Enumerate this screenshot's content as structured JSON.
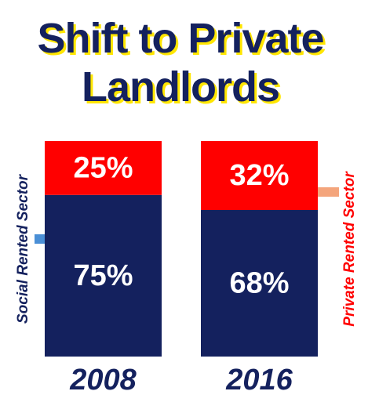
{
  "chart_data": {
    "type": "stacked_bar",
    "title": "Shift to Private Landlords",
    "categories": [
      "2008",
      "2016"
    ],
    "series": [
      {
        "name": "Social Rented Sector",
        "color": "#14215e",
        "values": [
          75,
          68
        ],
        "value_labels": [
          "75%",
          "68%"
        ]
      },
      {
        "name": "Private Rented Sector",
        "color": "#ff0000",
        "values": [
          25,
          32
        ],
        "value_labels": [
          "25%",
          "32%"
        ]
      }
    ]
  }
}
